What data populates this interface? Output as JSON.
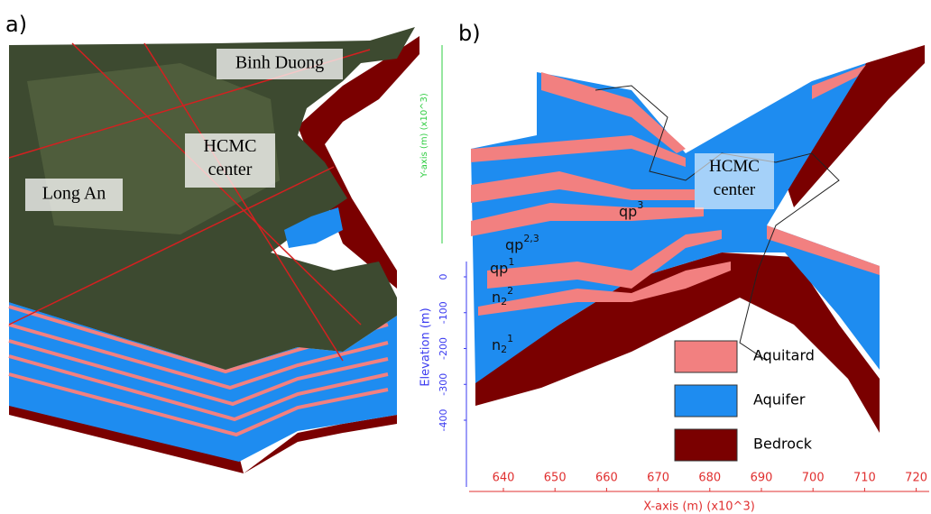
{
  "panel_a": {
    "label": "a)",
    "places": [
      "Binh Duong",
      "HCMC center",
      "Long An"
    ]
  },
  "panel_b": {
    "label": "b)",
    "y_axis_label": "Y-axis (m) (x10^3)",
    "elevation_axis_label": "Elevation (m)",
    "elevation_ticks": [
      0,
      -100,
      -200,
      -300,
      -400
    ],
    "x_axis_label": "X-axis (m) (x10^3)",
    "x_ticks": [
      640,
      650,
      660,
      670,
      680,
      690,
      700,
      710,
      720
    ],
    "center_label": "HCMC center",
    "layers": [
      {
        "base": "qp",
        "sup": "3"
      },
      {
        "base": "qp",
        "sup": "2,3"
      },
      {
        "base": "qp",
        "sup": "1"
      },
      {
        "base": "n",
        "sub": "2",
        "sup": "2"
      },
      {
        "base": "n",
        "sub": "2",
        "sup": "1"
      }
    ],
    "legend": [
      {
        "name": "Aquitard",
        "color": "#f28080"
      },
      {
        "name": "Aquifer",
        "color": "#1e8cf0"
      },
      {
        "name": "Bedrock",
        "color": "#7a0000"
      }
    ]
  }
}
